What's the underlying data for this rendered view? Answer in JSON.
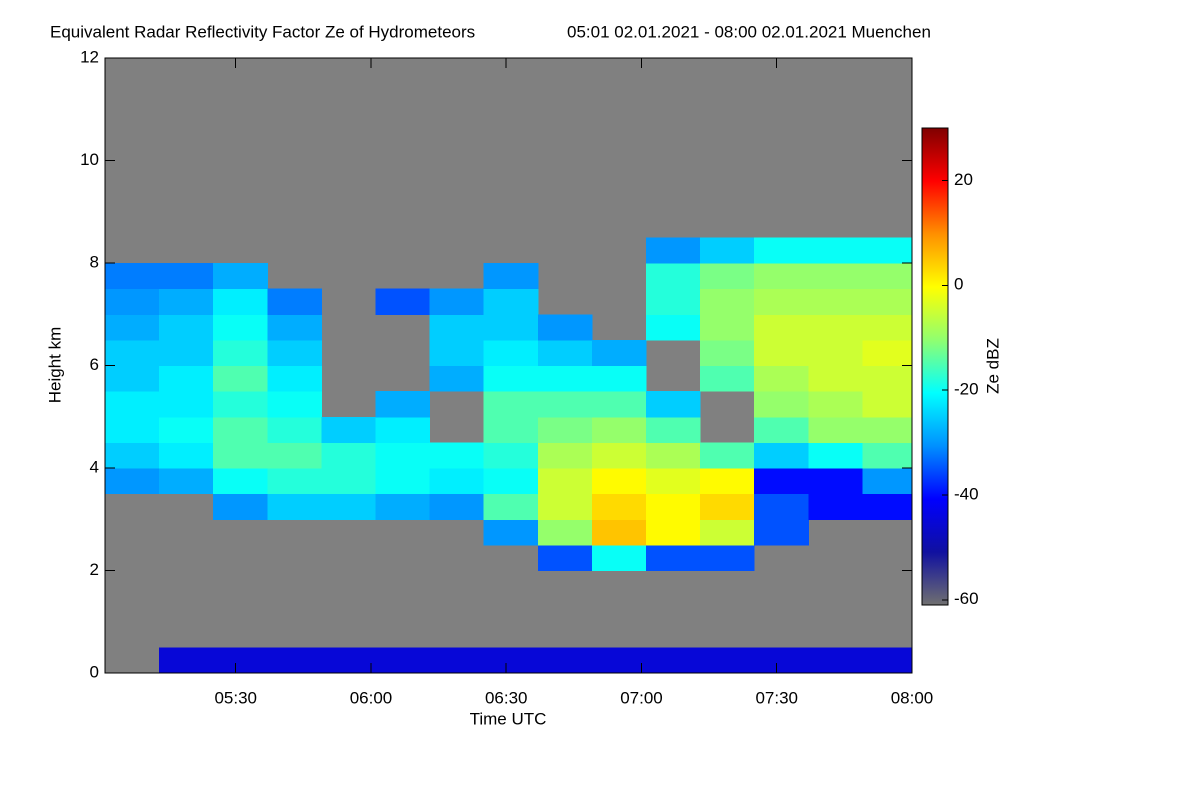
{
  "chart_data": {
    "type": "heatmap",
    "title": "Equivalent Radar Reflectivity Factor Ze of Hydrometeors",
    "subtitle": "05:01 02.01.2021 - 08:00 02.01.2021 Muenchen",
    "x_label": "Time UTC",
    "y_label": "Height km",
    "colorbar_label": "Ze dBZ",
    "x": [
      7,
      19,
      31,
      43,
      55,
      67,
      79,
      91,
      103,
      115,
      127,
      139,
      151,
      163,
      175
    ],
    "y": [
      0.25,
      0.75,
      1.25,
      1.75,
      2.25,
      2.75,
      3.25,
      3.75,
      4.25,
      4.75,
      5.25,
      5.75,
      6.25,
      6.75,
      7.25,
      7.75,
      8.25
    ],
    "values": [
      [
        null,
        null,
        null,
        null,
        null,
        null,
        null,
        -30,
        -25,
        -22,
        -22,
        -25,
        -25,
        -28,
        -30,
        -32,
        null
      ],
      [
        -45,
        null,
        null,
        null,
        null,
        null,
        null,
        -28,
        -22,
        -20,
        -22,
        -22,
        -25,
        -25,
        -28,
        -32,
        null
      ],
      [
        -45,
        null,
        null,
        null,
        null,
        null,
        -30,
        -20,
        -15,
        -15,
        -18,
        -15,
        -18,
        -20,
        -22,
        -28,
        null
      ],
      [
        -45,
        null,
        null,
        null,
        null,
        null,
        -25,
        -18,
        -15,
        -18,
        -20,
        -22,
        -25,
        -28,
        -32,
        null,
        null
      ],
      [
        -45,
        null,
        null,
        null,
        null,
        null,
        -25,
        -18,
        -18,
        -25,
        null,
        null,
        null,
        null,
        null,
        null,
        null
      ],
      [
        -45,
        null,
        null,
        null,
        null,
        null,
        -28,
        -20,
        -20,
        -22,
        -28,
        null,
        null,
        null,
        -35,
        null,
        null
      ],
      [
        -45,
        null,
        null,
        null,
        null,
        null,
        -30,
        -22,
        -20,
        null,
        null,
        -28,
        -25,
        -25,
        -30,
        null,
        null
      ],
      [
        -45,
        null,
        null,
        null,
        null,
        -30,
        -15,
        -20,
        -18,
        -15,
        -15,
        -20,
        -22,
        -25,
        -25,
        -30,
        null
      ],
      [
        -45,
        null,
        null,
        null,
        -35,
        -10,
        -5,
        -5,
        -8,
        -12,
        -15,
        -20,
        -25,
        -30,
        null,
        null,
        null
      ],
      [
        -45,
        null,
        null,
        null,
        -20,
        5,
        3,
        0,
        -5,
        -10,
        -15,
        -20,
        -28,
        null,
        null,
        null,
        null
      ],
      [
        -45,
        null,
        null,
        null,
        -35,
        0,
        0,
        -3,
        -8,
        -15,
        -25,
        null,
        null,
        -20,
        -18,
        -18,
        -30
      ],
      [
        -45,
        null,
        null,
        null,
        -35,
        -5,
        3,
        0,
        -15,
        null,
        null,
        -15,
        -12,
        -10,
        -10,
        -12,
        -25
      ],
      [
        -45,
        null,
        null,
        null,
        null,
        -35,
        -35,
        -40,
        -25,
        -15,
        -10,
        -8,
        -5,
        -5,
        -8,
        -10,
        -20
      ],
      [
        -45,
        null,
        null,
        null,
        null,
        null,
        -40,
        -40,
        -20,
        -10,
        -8,
        -5,
        -5,
        -5,
        -8,
        -10,
        -20
      ],
      [
        -45,
        null,
        null,
        null,
        null,
        null,
        -40,
        -30,
        -15,
        -10,
        -5,
        -5,
        -3,
        -5,
        -8,
        -10,
        -20
      ]
    ],
    "cell_width": 12,
    "cell_height": 0.5,
    "xlim": [
      1,
      180
    ],
    "xticks": [
      {
        "value": 30,
        "label": "05:30"
      },
      {
        "value": 60,
        "label": "06:00"
      },
      {
        "value": 90,
        "label": "06:30"
      },
      {
        "value": 120,
        "label": "07:00"
      },
      {
        "value": 150,
        "label": "07:30"
      },
      {
        "value": 180,
        "label": "08:00"
      }
    ],
    "ylim": [
      0,
      12
    ],
    "yticks": [
      0,
      2,
      4,
      6,
      8,
      10,
      12
    ],
    "clim": [
      -61,
      30
    ],
    "cticks": [
      -60,
      -40,
      -20,
      0,
      20
    ],
    "colormap": [
      "#707070",
      "#1010a0",
      "#0000ff",
      "#0090ff",
      "#00ffff",
      "#90ff70",
      "#ffff00",
      "#ff9000",
      "#ff0000",
      "#800000"
    ],
    "background": "#808080"
  }
}
